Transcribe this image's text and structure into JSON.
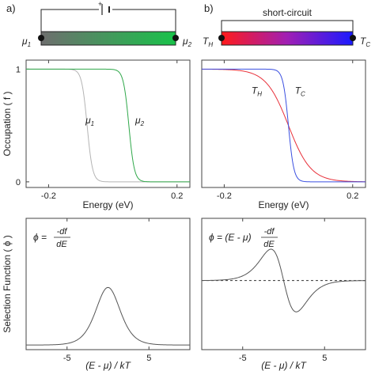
{
  "panel_labels": {
    "a": "a)",
    "b": "b)"
  },
  "devices": {
    "left": {
      "battery_sign": "+",
      "left_terminal": "μ",
      "left_sub": "1",
      "right_terminal": "μ",
      "right_sub": "2",
      "gradient": [
        "#6e6e6e",
        "#19c24a"
      ]
    },
    "right": {
      "circuit_label": "short-circuit",
      "left_terminal": "T",
      "left_sub": "H",
      "right_terminal": "T",
      "right_sub": "C",
      "gradient": [
        "#ff1a1a",
        "#1a1aff"
      ]
    }
  },
  "chart_data": [
    {
      "id": "occupation-a",
      "type": "line",
      "ylabel": "Occupation ( f )",
      "xlabel": "Energy (eV)",
      "xlim": [
        -0.27,
        0.24
      ],
      "ylim": [
        -0.05,
        1.08
      ],
      "xticks": [
        -0.2,
        0.2
      ],
      "xtick_labels": [
        "-0.2",
        "0.2"
      ],
      "yticks": [
        0,
        1
      ],
      "ytick_labels": [
        "0",
        "1"
      ],
      "series": [
        {
          "name": "μ1",
          "color": "#b4b4b4",
          "mu": -0.08,
          "kT": 0.0085
        },
        {
          "name": "μ2",
          "color": "#2fa84a",
          "mu": 0.05,
          "kT": 0.0085
        }
      ],
      "annotations": [
        {
          "text": "μ",
          "sub": "1",
          "x": -0.085,
          "y": 0.52
        },
        {
          "text": "μ",
          "sub": "2",
          "x": 0.07,
          "y": 0.52
        }
      ]
    },
    {
      "id": "occupation-b",
      "type": "line",
      "xlabel": "Energy (eV)",
      "xlim": [
        -0.27,
        0.24
      ],
      "ylim": [
        -0.05,
        1.08
      ],
      "xticks": [
        -0.2,
        0.2
      ],
      "xtick_labels": [
        "-0.2",
        "0.2"
      ],
      "series": [
        {
          "name": "T_H",
          "color": "#e8303a",
          "mu": 0.0,
          "kT": 0.035
        },
        {
          "name": "T_C",
          "color": "#3a4fe0",
          "mu": 0.0,
          "kT": 0.0085
        }
      ],
      "annotations": [
        {
          "text": "T",
          "sub": "H",
          "x": -0.115,
          "y": 0.78
        },
        {
          "text": "T",
          "sub": "C",
          "x": 0.02,
          "y": 0.78
        }
      ]
    },
    {
      "id": "selection-a",
      "type": "line",
      "ylabel": "Selection Function ( ϕ )",
      "xlabel": "(E - μ) / kT",
      "xlim": [
        -10,
        10
      ],
      "ylim": [
        -0.3,
        0.27
      ],
      "xticks": [
        -5,
        5
      ],
      "xtick_labels": [
        "-5",
        "5"
      ],
      "function": "df",
      "color": "#555555",
      "equation": {
        "lhs": "ϕ =",
        "num": "-df",
        "den": "dE"
      }
    },
    {
      "id": "selection-b",
      "type": "line",
      "xlabel": "(E - μ) / kT",
      "xlim": [
        -10,
        10
      ],
      "ylim": [
        -0.3,
        0.27
      ],
      "xticks": [
        -5,
        5
      ],
      "xtick_labels": [
        "-5",
        "5"
      ],
      "function": "xdf",
      "color": "#555555",
      "dashed_zero": true,
      "equation": {
        "lhs": "ϕ = (E - μ)",
        "num": "-df",
        "den": "dE"
      }
    }
  ]
}
